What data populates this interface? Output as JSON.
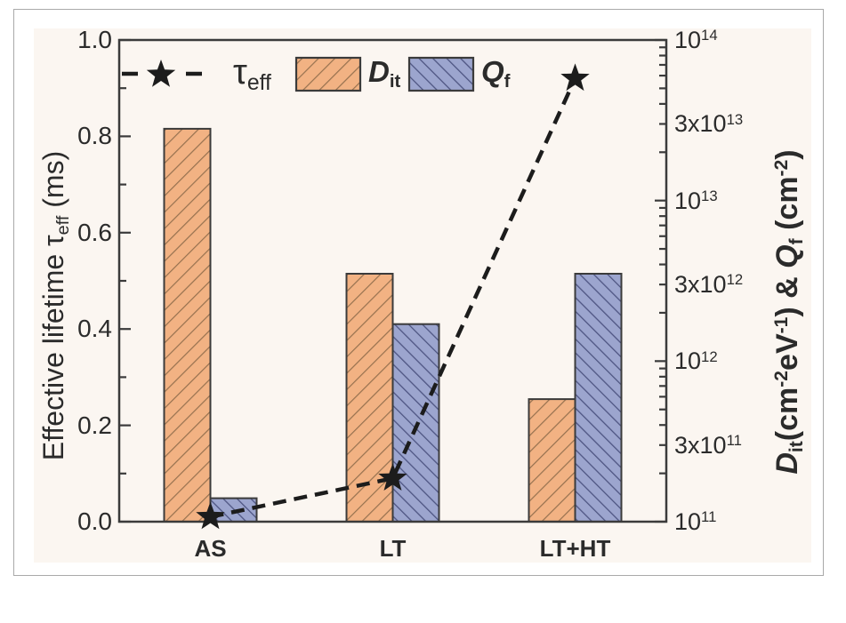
{
  "figure": {
    "background_color": "#FBF6F1",
    "panel_border_color": "#A9A9A9",
    "axis_color": "#3B3B3B",
    "text_color": "#2B2B2B",
    "dash_line_color": "#1C1C1C"
  },
  "chart_data": {
    "type": "bar",
    "title": "",
    "categories": [
      "AS",
      "LT",
      "LT+HT"
    ],
    "series": [
      {
        "name": "Dit",
        "type": "bar",
        "axis": "right",
        "values": [
          28000000000000.0,
          3500000000000.0,
          580000000000.0
        ],
        "fill": "#F2B283",
        "hatch": "/",
        "hatch_color": "#96714F"
      },
      {
        "name": "Qf",
        "type": "bar",
        "axis": "right",
        "values": [
          140000000000.0,
          1700000000000.0,
          3500000000000.0
        ],
        "fill": "#9CA5CE",
        "hatch": "\\",
        "hatch_color": "#4E5582"
      },
      {
        "name": "tau_eff",
        "type": "line",
        "axis": "left",
        "values": [
          0.01,
          0.09,
          0.92
        ],
        "marker": "star",
        "line_style": "dashed",
        "color": "#1C1C1C"
      }
    ],
    "left_axis": {
      "label": "Effective lifetime τeff (ms)",
      "label_rich": [
        {
          "t": "Effective lifetime τ"
        },
        {
          "t": "eff",
          "sub": true
        },
        {
          "t": " (ms)"
        }
      ],
      "range": [
        0.0,
        1.0
      ],
      "major_tick_labels": [
        "0.0",
        "0.2",
        "0.4",
        "0.6",
        "0.8",
        "1.0"
      ],
      "minor_tick_step": 0.1
    },
    "right_axis": {
      "label": "Dit(cm-2eV-1) & Qf (cm-2)",
      "label_rich": [
        {
          "t": "D",
          "i": true
        },
        {
          "t": "it",
          "sub": true
        },
        {
          "t": "(cm"
        },
        {
          "t": "-2",
          "sup": true
        },
        {
          "t": "eV"
        },
        {
          "t": "-1",
          "sup": true
        },
        {
          "t": ") & "
        },
        {
          "t": "Q",
          "i": true
        },
        {
          "t": "f",
          "sub": true
        },
        {
          "t": " (cm"
        },
        {
          "t": "-2",
          "sup": true
        },
        {
          "t": ")"
        }
      ],
      "scale": "log",
      "range": [
        100000000000.0,
        100000000000000.0
      ],
      "tick_labels": [
        {
          "base": "10",
          "exp": "14",
          "value": 100000000000000.0
        },
        {
          "base": "3x10",
          "exp": "13",
          "value": 30000000000000.0
        },
        {
          "base": "10",
          "exp": "13",
          "value": 10000000000000.0
        },
        {
          "base": "3x10",
          "exp": "12",
          "value": 3000000000000.0
        },
        {
          "base": "10",
          "exp": "12",
          "value": 1000000000000.0
        },
        {
          "base": "3x10",
          "exp": "11",
          "value": 300000000000.0
        },
        {
          "base": "10",
          "exp": "11",
          "value": 100000000000.0
        }
      ]
    },
    "legend": {
      "position": "top-inside",
      "tau": {
        "label": "τeff",
        "rich": [
          {
            "t": "τ"
          },
          {
            "t": "eff",
            "sub": true
          }
        ]
      },
      "dit": {
        "label": "Dit",
        "rich": [
          {
            "t": "D",
            "i": true,
            "b": true
          },
          {
            "t": "it",
            "sub": true,
            "b": true
          }
        ]
      },
      "qf": {
        "label": "Qf",
        "rich": [
          {
            "t": "Q",
            "i": true,
            "b": true
          },
          {
            "t": "f",
            "sub": true,
            "b": true
          }
        ]
      }
    },
    "grid": false
  }
}
